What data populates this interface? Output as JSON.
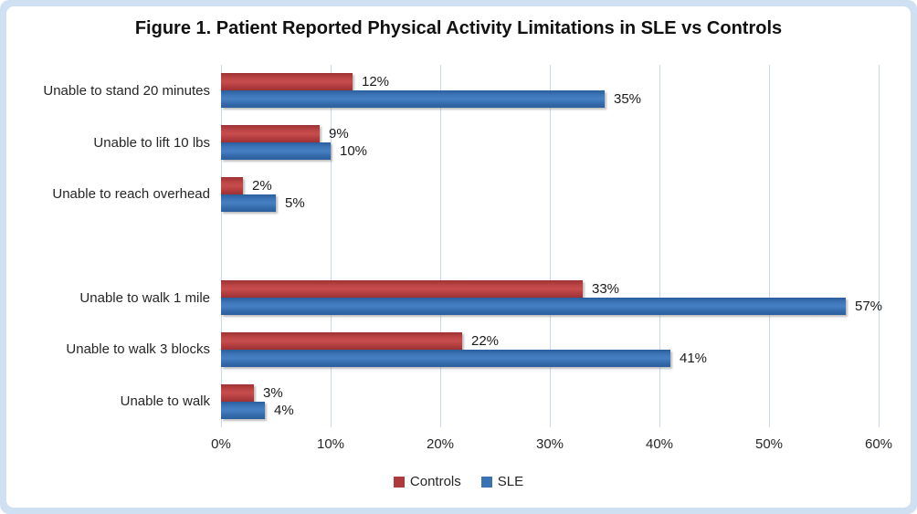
{
  "chart_data": {
    "type": "bar",
    "orientation": "horizontal",
    "title": "Figure 1. Patient Reported Physical Activity Limitations in SLE vs Controls",
    "categories": [
      "Unable to stand 20 minutes",
      "Unable to lift 10 lbs",
      "Unable to reach overhead",
      "",
      "Unable to walk 1 mile",
      "Unable to walk 3 blocks",
      "Unable to walk"
    ],
    "series": [
      {
        "name": "Controls",
        "color": "#AF3A3B",
        "values": [
          12,
          9,
          2,
          null,
          33,
          22,
          3
        ],
        "labels": [
          "12%",
          "9%",
          "2%",
          null,
          "33%",
          "22%",
          "3%"
        ]
      },
      {
        "name": "SLE",
        "color": "#3A72B4",
        "values": [
          35,
          10,
          5,
          null,
          57,
          41,
          4
        ],
        "labels": [
          "35%",
          "10%",
          "5%",
          null,
          "57%",
          "41%",
          "4%"
        ]
      }
    ],
    "x_ticks": [
      "0%",
      "10%",
      "20%",
      "30%",
      "40%",
      "50%",
      "60%"
    ],
    "xlim": [
      0,
      60
    ],
    "grid": "vertical",
    "gridline_color": "#C6D9F0",
    "frame_color": "#CFE0F2",
    "legend_position": "bottom",
    "data_labels_shown": true
  }
}
